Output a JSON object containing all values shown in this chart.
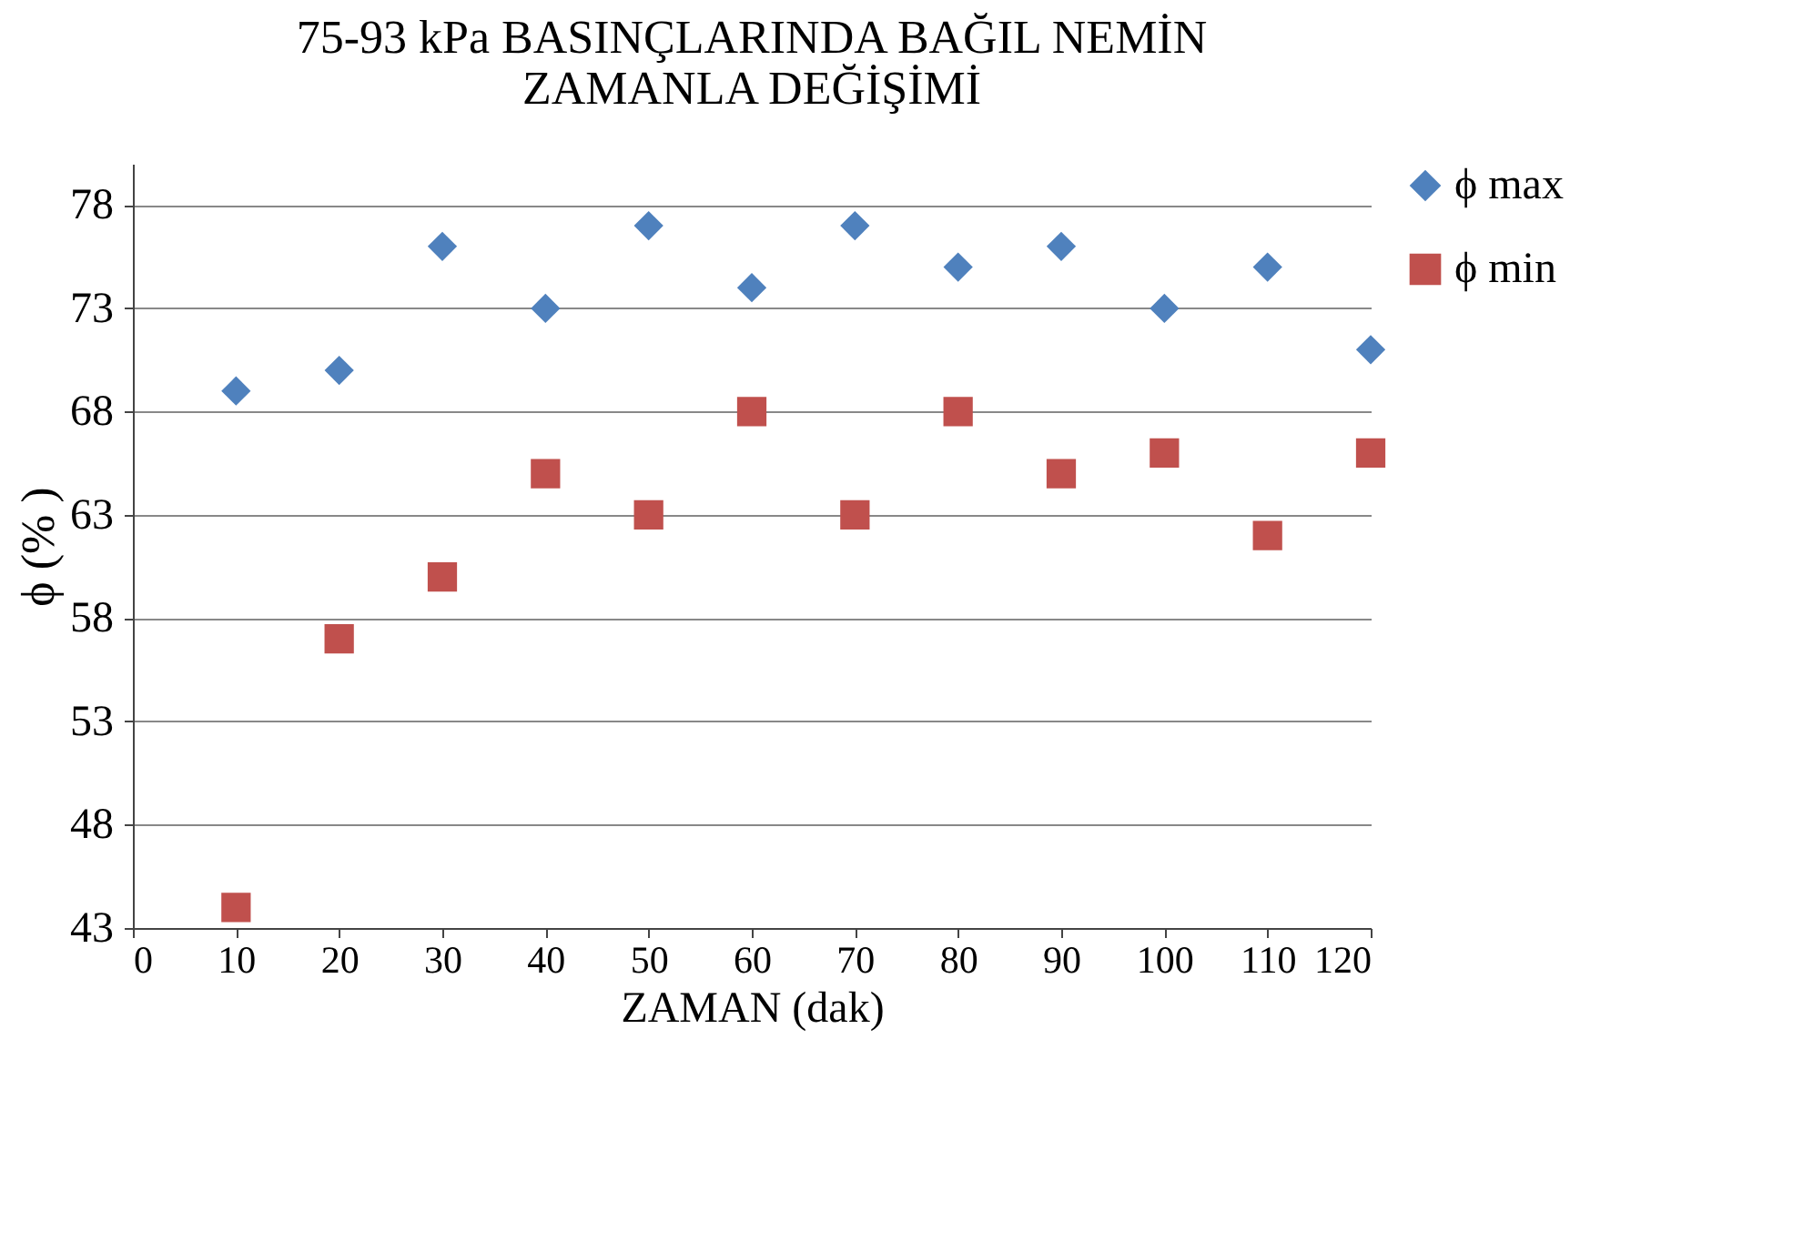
{
  "chart_data": {
    "type": "scatter",
    "title": "75-93 kPa BASINÇLARINDA BAĞIL NEMİN\nZAMANLA DEĞİŞİMİ",
    "xlabel": "ZAMAN (dak)",
    "ylabel": "ϕ (% )",
    "x": [
      10,
      20,
      30,
      40,
      50,
      60,
      70,
      80,
      90,
      100,
      110,
      120
    ],
    "series": [
      {
        "name": "ϕ max",
        "color": "#4f81bd",
        "marker": "diamond",
        "values": [
          69,
          70,
          76,
          73,
          77,
          74,
          77,
          75,
          76,
          73,
          75,
          71
        ]
      },
      {
        "name": "ϕ min",
        "color": "#c0504d",
        "marker": "square",
        "values": [
          44,
          57,
          60,
          65,
          63,
          68,
          63,
          68,
          65,
          66,
          62,
          66
        ]
      }
    ],
    "xlim": [
      0,
      120
    ],
    "xticks": [
      0,
      10,
      20,
      30,
      40,
      50,
      60,
      70,
      80,
      90,
      100,
      110,
      120
    ],
    "ylim": [
      43,
      80
    ],
    "yticks": [
      43,
      48,
      53,
      58,
      63,
      68,
      73,
      78
    ],
    "grid": "y",
    "legend": "right"
  }
}
